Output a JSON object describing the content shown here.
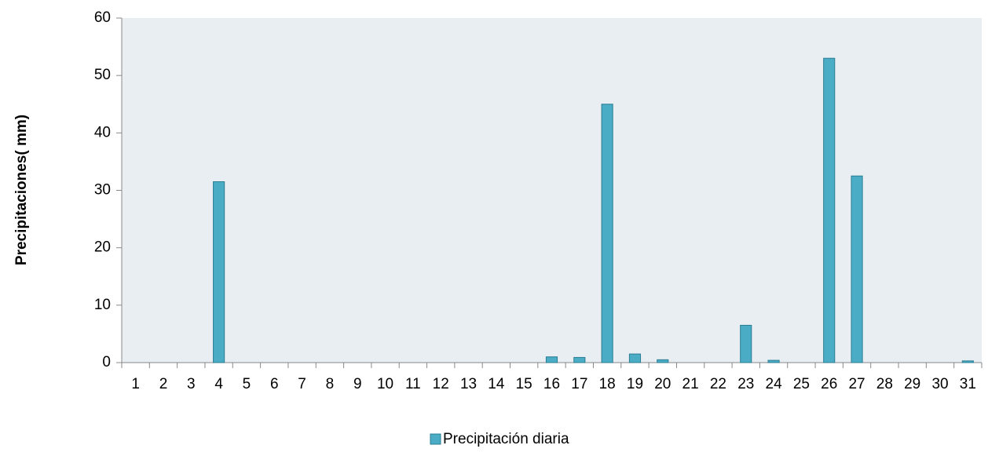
{
  "chart_data": {
    "type": "bar",
    "y_label": "Precipitaciones( mm)",
    "categories": [
      "1",
      "2",
      "3",
      "4",
      "5",
      "6",
      "7",
      "8",
      "9",
      "10",
      "11",
      "12",
      "13",
      "14",
      "15",
      "16",
      "17",
      "18",
      "19",
      "20",
      "21",
      "22",
      "23",
      "24",
      "25",
      "26",
      "27",
      "28",
      "29",
      "30",
      "31"
    ],
    "series": [
      {
        "name": "Precipitación diaria",
        "color": "#4bacc6",
        "values": [
          0,
          0,
          0,
          31.5,
          0,
          0,
          0,
          0,
          0,
          0,
          0,
          0,
          0,
          0,
          0,
          1,
          0.9,
          45,
          1.5,
          0.5,
          0,
          0,
          6.5,
          0.4,
          0,
          53,
          32.5,
          0,
          0,
          0,
          0.3
        ]
      }
    ],
    "ylim": [
      0,
      60
    ],
    "yticks": [
      0,
      10,
      20,
      30,
      40,
      50,
      60
    ],
    "grid": false,
    "legend": "bottom",
    "plot_background": "#e9eef2"
  }
}
